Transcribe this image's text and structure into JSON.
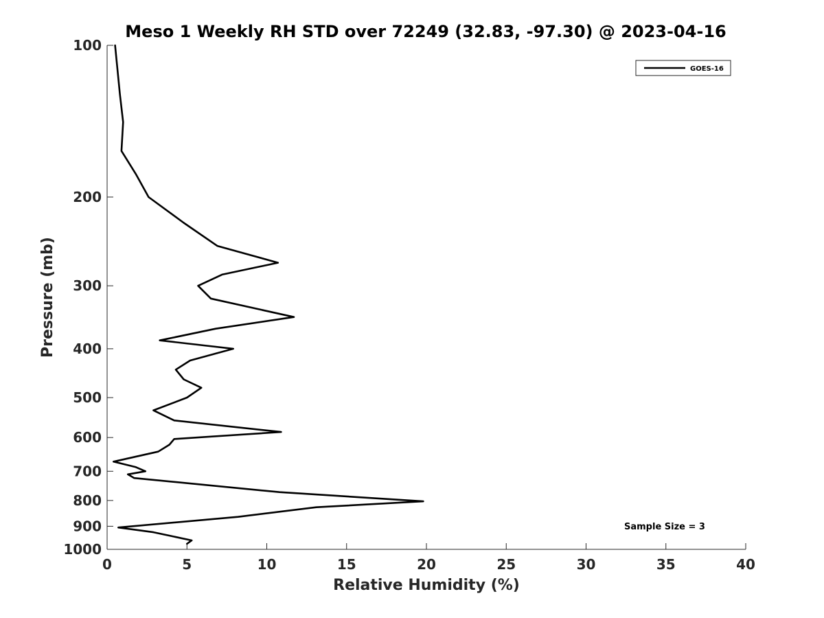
{
  "chart_data": {
    "type": "line",
    "title": "Meso 1 Weekly RH STD over 72249 (32.83, -97.30) @ 2023-04-16",
    "xlabel": "Relative Humidity (%)",
    "ylabel": "Pressure (mb)",
    "xlim": [
      0,
      40
    ],
    "ylim": [
      100,
      1000
    ],
    "y_scale": "log",
    "y_reversed": true,
    "grid": false,
    "legend_position": "top-right",
    "x_ticks": [
      "0",
      "5",
      "10",
      "15",
      "20",
      "25",
      "30",
      "35",
      "40"
    ],
    "y_ticks": [
      "100",
      "200",
      "300",
      "400",
      "500",
      "600",
      "700",
      "800",
      "900",
      "1000"
    ],
    "annotation": "Sample Size = 3",
    "series": [
      {
        "name": "GOES-16",
        "color": "#000000",
        "points": [
          {
            "x": 0.5,
            "y": 100
          },
          {
            "x": 0.8,
            "y": 125
          },
          {
            "x": 1.0,
            "y": 142
          },
          {
            "x": 0.9,
            "y": 162
          },
          {
            "x": 1.8,
            "y": 180
          },
          {
            "x": 2.6,
            "y": 200
          },
          {
            "x": 4.8,
            "y": 225
          },
          {
            "x": 6.9,
            "y": 250
          },
          {
            "x": 10.7,
            "y": 270
          },
          {
            "x": 7.2,
            "y": 285
          },
          {
            "x": 5.7,
            "y": 300
          },
          {
            "x": 6.5,
            "y": 318
          },
          {
            "x": 11.7,
            "y": 346
          },
          {
            "x": 6.8,
            "y": 365
          },
          {
            "x": 3.3,
            "y": 385
          },
          {
            "x": 7.9,
            "y": 400
          },
          {
            "x": 5.2,
            "y": 422
          },
          {
            "x": 4.3,
            "y": 440
          },
          {
            "x": 4.8,
            "y": 460
          },
          {
            "x": 5.9,
            "y": 478
          },
          {
            "x": 5.0,
            "y": 500
          },
          {
            "x": 2.9,
            "y": 530
          },
          {
            "x": 4.2,
            "y": 555
          },
          {
            "x": 10.9,
            "y": 585
          },
          {
            "x": 4.2,
            "y": 604
          },
          {
            "x": 3.9,
            "y": 620
          },
          {
            "x": 3.2,
            "y": 640
          },
          {
            "x": 0.4,
            "y": 670
          },
          {
            "x": 1.8,
            "y": 687
          },
          {
            "x": 2.4,
            "y": 700
          },
          {
            "x": 1.3,
            "y": 710
          },
          {
            "x": 1.7,
            "y": 722
          },
          {
            "x": 10.8,
            "y": 770
          },
          {
            "x": 19.8,
            "y": 803
          },
          {
            "x": 13.1,
            "y": 825
          },
          {
            "x": 8.2,
            "y": 862
          },
          {
            "x": 0.7,
            "y": 905
          },
          {
            "x": 2.9,
            "y": 925
          },
          {
            "x": 5.3,
            "y": 960
          },
          {
            "x": 5.0,
            "y": 975
          }
        ]
      }
    ]
  }
}
